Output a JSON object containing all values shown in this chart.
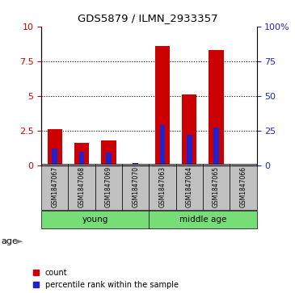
{
  "title": "GDS5879 / ILMN_2933357",
  "samples": [
    "GSM1847067",
    "GSM1847068",
    "GSM1847069",
    "GSM1847070",
    "GSM1847063",
    "GSM1847064",
    "GSM1847065",
    "GSM1847066"
  ],
  "red_values": [
    2.6,
    1.6,
    1.8,
    0.05,
    8.6,
    5.1,
    8.3,
    0.05
  ],
  "blue_values": [
    1.2,
    1.0,
    0.9,
    0.15,
    2.9,
    2.2,
    2.7,
    0.05
  ],
  "groups": [
    {
      "label": "young",
      "start": 0,
      "end": 3
    },
    {
      "label": "middle age",
      "start": 4,
      "end": 7
    }
  ],
  "ylim_left": [
    0,
    10
  ],
  "ylim_right": [
    0,
    100
  ],
  "yticks_left": [
    0,
    2.5,
    5,
    7.5,
    10
  ],
  "yticks_right": [
    0,
    25,
    50,
    75,
    100
  ],
  "ytick_labels_right": [
    "0",
    "25",
    "50",
    "75",
    "100%"
  ],
  "red_color": "#CC0000",
  "blue_color": "#2222CC",
  "red_bar_width": 0.55,
  "blue_bar_width": 0.2,
  "bg_color": "#ffffff",
  "label_area_color": "#c0c0c0",
  "green_color": "#77DD77",
  "age_label": "age",
  "legend_red": "count",
  "legend_blue": "percentile rank within the sample",
  "grid_dotted_ticks": [
    2.5,
    5.0,
    7.5
  ]
}
